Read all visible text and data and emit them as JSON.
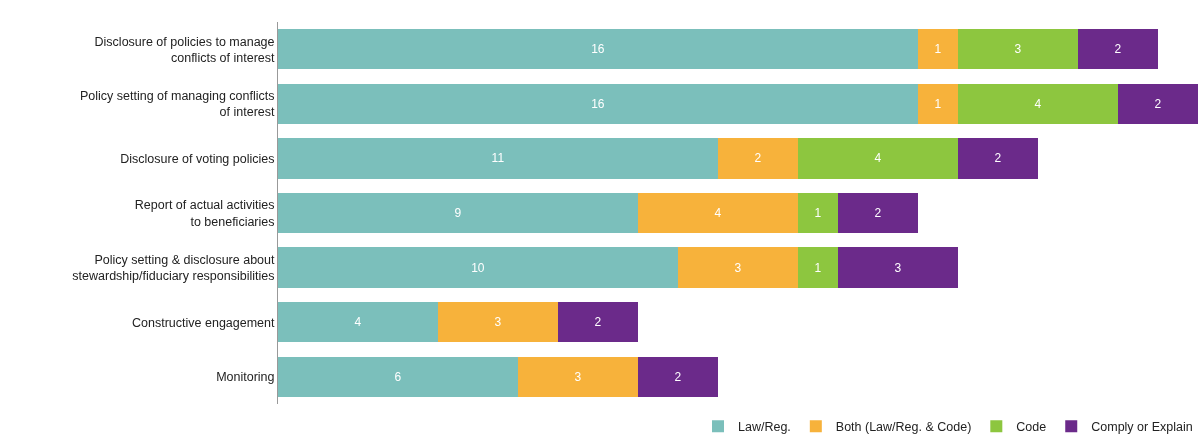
{
  "chart_data": {
    "type": "bar",
    "orientation": "horizontal",
    "stacked": true,
    "data_labels": true,
    "grid": false,
    "legend": "bottom right",
    "tick_labels": "y",
    "xlim": [
      0,
      23
    ],
    "categories": [
      "Disclosure of policies to manage\nconflicts of interest",
      "Policy setting of managing conflicts\nof interest",
      "Disclosure of voting policies",
      "Report of actual activities\nto beneficiaries",
      "Policy setting & disclosure about\nstewardship/fiduciary responsibilities",
      "Constructive engagement",
      "Monitoring"
    ],
    "series": [
      {
        "name": "Law/Reg.",
        "color": "#7bbfbb",
        "values": [
          16,
          16,
          11,
          9,
          10,
          4,
          6
        ]
      },
      {
        "name": "Both (Law/Reg. & Code)",
        "color": "#f7b23b",
        "values": [
          1,
          1,
          2,
          4,
          3,
          3,
          3
        ]
      },
      {
        "name": "Code",
        "color": "#8dc63f",
        "values": [
          3,
          4,
          4,
          1,
          1,
          null,
          null
        ]
      },
      {
        "name": "Comply or Explain",
        "color": "#6b2a8a",
        "values": [
          2,
          2,
          2,
          2,
          3,
          2,
          2
        ]
      }
    ]
  }
}
